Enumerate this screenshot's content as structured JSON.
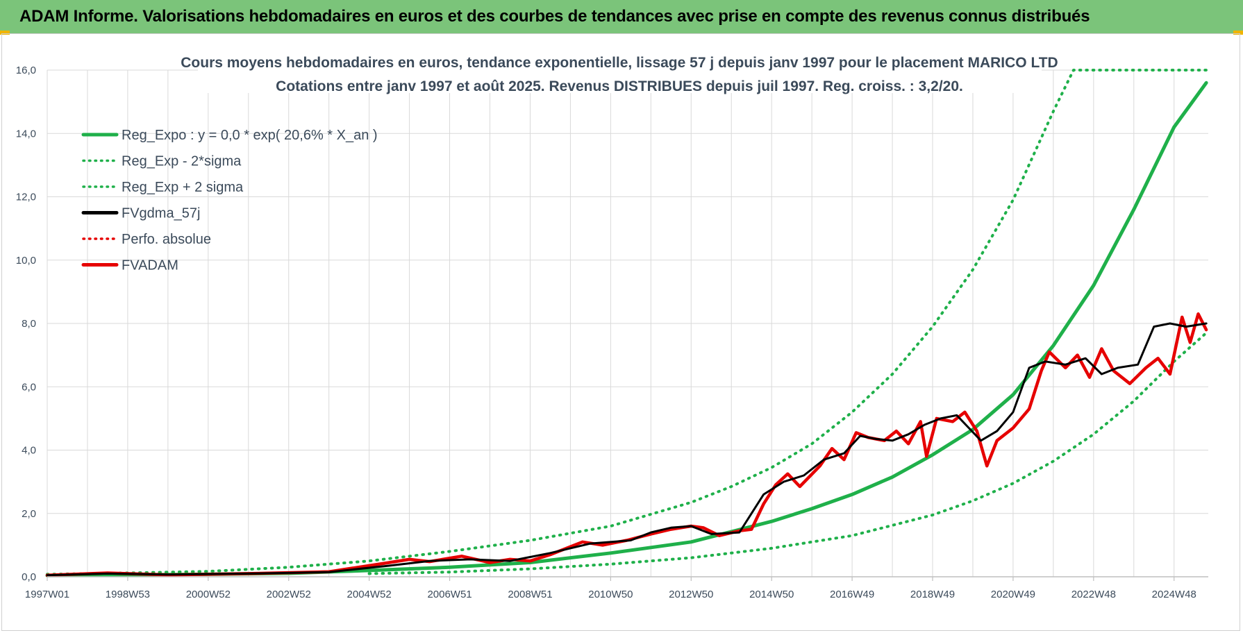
{
  "banner": {
    "title": "ADAM Informe. Valorisations hebdomadaires en euros et des courbes de tendances avec prise en compte des revenus connus distribués"
  },
  "colors": {
    "banner_bg": "#7bc47a",
    "green": "#1fb04a",
    "red": "#e60000",
    "black": "#000000",
    "grid": "#d9d9d9",
    "text": "#3b4a5a"
  },
  "chart_data": {
    "type": "line",
    "title_line1": "Cours moyens hebdomadaires en euros, tendance exponentielle, lissage 57 j depuis janv 1997  pour le placement MARICO LTD",
    "title_line2": "Cotations entre janv 1997 et août 2025.  Revenus DISTRIBUES depuis juil 1997.  Reg. croiss. : 3,2/20.",
    "x_tick_labels": [
      "1997W01",
      "1998W53",
      "2000W52",
      "2002W52",
      "2004W52",
      "2006W51",
      "2008W51",
      "2010W50",
      "2012W50",
      "2014W50",
      "2016W49",
      "2018W49",
      "2020W49",
      "2022W48",
      "2024W48"
    ],
    "x_tick_years": [
      1997.0,
      1999.0,
      2001.0,
      2003.0,
      2005.0,
      2007.0,
      2009.0,
      2011.0,
      2013.0,
      2015.0,
      2017.0,
      2019.0,
      2021.0,
      2023.0,
      2025.0
    ],
    "xlim": [
      1997.0,
      2025.85
    ],
    "ylim": [
      0,
      16
    ],
    "y_ticks": [
      0,
      2,
      4,
      6,
      8,
      10,
      12,
      14,
      16
    ],
    "y_tick_labels": [
      "0,0",
      "2,0",
      "4,0",
      "6,0",
      "8,0",
      "10,0",
      "12,0",
      "14,0",
      "16,0"
    ],
    "grid": true,
    "legend_position": "top-left",
    "legend": [
      {
        "label": "Reg_Expo : y = 0,0 * exp( 20,6% *  X_an )",
        "style": "solid",
        "color": "#1fb04a"
      },
      {
        "label": "Reg_Exp - 2*sigma",
        "style": "dotted",
        "color": "#1fb04a"
      },
      {
        "label": "Reg_Exp + 2 sigma",
        "style": "dotted",
        "color": "#1fb04a"
      },
      {
        "label": "FVgdma_57j",
        "style": "solid",
        "color": "#000000"
      },
      {
        "label": "Perfo. absolue",
        "style": "dotted",
        "color": "#e60000"
      },
      {
        "label": "FVADAM",
        "style": "solid",
        "color": "#e60000"
      }
    ],
    "series": [
      {
        "name": "Reg_Expo : y = 0,0 * exp( 20,6% *  X_an )",
        "x": [
          1997,
          1999,
          2001,
          2003,
          2005,
          2007,
          2009,
          2011,
          2013,
          2015,
          2016,
          2017,
          2018,
          2019,
          2020,
          2021,
          2022,
          2023,
          2024,
          2025,
          2025.8
        ],
        "y": [
          0.04,
          0.06,
          0.08,
          0.11,
          0.2,
          0.3,
          0.45,
          0.75,
          1.1,
          1.75,
          2.15,
          2.6,
          3.15,
          3.85,
          4.65,
          5.75,
          7.3,
          9.2,
          11.6,
          14.2,
          15.6
        ]
      },
      {
        "name": "Reg_Exp - 2*sigma",
        "x": [
          2005,
          2007,
          2009,
          2011,
          2013,
          2015,
          2017,
          2019,
          2020,
          2021,
          2022,
          2023,
          2024,
          2025,
          2025.8
        ],
        "y": [
          0.1,
          0.15,
          0.25,
          0.4,
          0.6,
          0.9,
          1.3,
          1.95,
          2.4,
          2.95,
          3.65,
          4.5,
          5.55,
          6.8,
          7.7
        ]
      },
      {
        "name": "Reg_Exp + 2 sigma",
        "x": [
          1997,
          1999,
          2001,
          2003,
          2005,
          2007,
          2009,
          2011,
          2013,
          2014,
          2015,
          2016,
          2017,
          2018,
          2019,
          2020,
          2021,
          2022,
          2022.5,
          2025.8
        ],
        "y": [
          0.08,
          0.12,
          0.17,
          0.3,
          0.5,
          0.8,
          1.15,
          1.6,
          2.35,
          2.85,
          3.45,
          4.2,
          5.2,
          6.4,
          7.9,
          9.7,
          11.9,
          14.7,
          16,
          16
        ]
      },
      {
        "name": "FVgdma_57j",
        "x": [
          1997,
          1998.5,
          2000,
          2002,
          2004,
          2005.5,
          2006.5,
          2007.5,
          2008.5,
          2009.5,
          2010.5,
          2011.5,
          2012,
          2012.5,
          2013,
          2013.5,
          2014.2,
          2014.8,
          2015.3,
          2015.8,
          2016.3,
          2016.8,
          2017.2,
          2017.6,
          2018,
          2018.4,
          2018.8,
          2019.2,
          2019.6,
          2020.2,
          2020.6,
          2021,
          2021.4,
          2021.8,
          2022.3,
          2022.8,
          2023.2,
          2023.6,
          2024.1,
          2024.5,
          2024.9,
          2025.3,
          2025.8
        ],
        "y": [
          0.05,
          0.1,
          0.07,
          0.1,
          0.15,
          0.35,
          0.5,
          0.55,
          0.5,
          0.75,
          1.05,
          1.15,
          1.4,
          1.55,
          1.6,
          1.35,
          1.4,
          2.6,
          3.0,
          3.2,
          3.7,
          3.9,
          4.45,
          4.35,
          4.3,
          4.5,
          4.8,
          5.0,
          5.1,
          4.3,
          4.6,
          5.2,
          6.6,
          6.8,
          6.7,
          6.9,
          6.4,
          6.6,
          6.7,
          7.9,
          8.0,
          7.9,
          8.0
        ]
      },
      {
        "name": "FVADAM",
        "x": [
          1997,
          1998.5,
          2000,
          2002,
          2004,
          2005.5,
          2006,
          2006.5,
          2007.3,
          2008,
          2008.5,
          2009,
          2009.5,
          2010.3,
          2010.8,
          2011.4,
          2012,
          2012.5,
          2013,
          2013.3,
          2013.7,
          2014.2,
          2014.5,
          2014.8,
          2015.1,
          2015.4,
          2015.7,
          2016.2,
          2016.5,
          2016.8,
          2017.1,
          2017.4,
          2017.8,
          2018.1,
          2018.4,
          2018.7,
          2018.85,
          2019.1,
          2019.5,
          2019.8,
          2020.1,
          2020.35,
          2020.6,
          2021,
          2021.4,
          2021.7,
          2021.9,
          2022.3,
          2022.6,
          2022.9,
          2023.2,
          2023.5,
          2023.9,
          2024.3,
          2024.6,
          2024.9,
          2025.2,
          2025.4,
          2025.6,
          2025.8
        ],
        "y": [
          0.05,
          0.12,
          0.06,
          0.1,
          0.16,
          0.45,
          0.55,
          0.48,
          0.65,
          0.45,
          0.55,
          0.5,
          0.7,
          1.1,
          1.0,
          1.15,
          1.35,
          1.5,
          1.6,
          1.55,
          1.3,
          1.45,
          1.5,
          2.3,
          2.9,
          3.25,
          2.85,
          3.5,
          4.05,
          3.7,
          4.55,
          4.4,
          4.3,
          4.6,
          4.2,
          4.9,
          3.8,
          5.0,
          4.9,
          5.2,
          4.6,
          3.5,
          4.3,
          4.7,
          5.3,
          6.5,
          7.1,
          6.6,
          7.0,
          6.3,
          7.2,
          6.5,
          6.1,
          6.6,
          6.9,
          6.4,
          8.2,
          7.4,
          8.3,
          7.8
        ]
      }
    ]
  }
}
